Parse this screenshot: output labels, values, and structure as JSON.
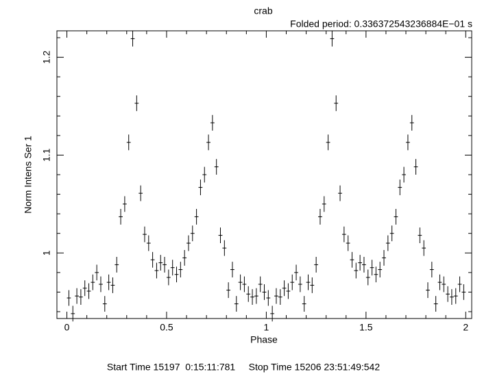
{
  "chart_data": {
    "type": "errorbar",
    "title": "crab",
    "subtitle": "Folded period: 0.336372543236884E−01 s",
    "x_label": "Phase",
    "y_label": "Norm Intens Ser  1",
    "footer": "Start Time 15197  0:15:11:781     Stop Time 15206 23:51:49:542",
    "xlim": [
      -0.05,
      2.03
    ],
    "ylim": [
      0.933,
      1.227
    ],
    "xticks": [
      0,
      0.5,
      1,
      1.5,
      2
    ],
    "yticks": [
      1,
      1.1,
      1.2
    ],
    "xminorticks": [
      0.1,
      0.2,
      0.3,
      0.4,
      0.6,
      0.7,
      0.8,
      0.9,
      1.1,
      1.2,
      1.3,
      1.4,
      1.6,
      1.7,
      1.8,
      1.9
    ],
    "yminorticks": [
      0.94,
      0.96,
      0.98,
      1.02,
      1.04,
      1.06,
      1.08,
      1.12,
      1.14,
      1.16,
      1.18,
      1.22
    ],
    "color": "#000000",
    "xerr": 0.01,
    "yerr": 0.008,
    "x": [
      0.01,
      0.03,
      0.05,
      0.07,
      0.09,
      0.11,
      0.13,
      0.15,
      0.17,
      0.19,
      0.21,
      0.23,
      0.25,
      0.27,
      0.29,
      0.31,
      0.33,
      0.35,
      0.37,
      0.39,
      0.41,
      0.43,
      0.45,
      0.47,
      0.49,
      0.51,
      0.53,
      0.55,
      0.57,
      0.59,
      0.61,
      0.63,
      0.65,
      0.67,
      0.69,
      0.71,
      0.73,
      0.75,
      0.77,
      0.79,
      0.81,
      0.83,
      0.85,
      0.87,
      0.89,
      0.91,
      0.93,
      0.95,
      0.97,
      0.99,
      1.01,
      1.03,
      1.05,
      1.07,
      1.09,
      1.11,
      1.13,
      1.15,
      1.17,
      1.19,
      1.21,
      1.23,
      1.25,
      1.27,
      1.29,
      1.31,
      1.33,
      1.35,
      1.37,
      1.39,
      1.41,
      1.43,
      1.45,
      1.47,
      1.49,
      1.51,
      1.53,
      1.55,
      1.57,
      1.59,
      1.61,
      1.63,
      1.65,
      1.67,
      1.69,
      1.71,
      1.73,
      1.75,
      1.77,
      1.79,
      1.81,
      1.83,
      1.85,
      1.87,
      1.89,
      1.91,
      1.93,
      1.95,
      1.97,
      1.99
    ],
    "values": [
      0.954,
      0.938,
      0.956,
      0.955,
      0.964,
      0.961,
      0.97,
      0.98,
      0.968,
      0.948,
      0.97,
      0.967,
      0.988,
      1.037,
      1.05,
      1.113,
      1.219,
      1.153,
      1.061,
      1.019,
      1.01,
      0.993,
      0.982,
      0.99,
      0.988,
      0.975,
      0.985,
      0.978,
      0.983,
      0.995,
      1.01,
      1.02,
      1.037,
      1.067,
      1.08,
      1.113,
      1.133,
      1.088,
      1.018,
      1.005,
      0.962,
      0.983,
      0.948,
      0.97,
      0.968,
      0.958,
      0.955,
      0.956,
      0.968,
      0.96,
      0.954,
      0.938,
      0.956,
      0.955,
      0.964,
      0.961,
      0.97,
      0.98,
      0.968,
      0.948,
      0.97,
      0.967,
      0.988,
      1.037,
      1.05,
      1.113,
      1.219,
      1.153,
      1.061,
      1.019,
      1.01,
      0.993,
      0.982,
      0.99,
      0.988,
      0.975,
      0.985,
      0.978,
      0.983,
      0.995,
      1.01,
      1.02,
      1.037,
      1.067,
      1.08,
      1.113,
      1.133,
      1.088,
      1.018,
      1.005,
      0.962,
      0.983,
      0.948,
      0.97,
      0.968,
      0.958,
      0.955,
      0.956,
      0.968,
      0.96
    ]
  }
}
